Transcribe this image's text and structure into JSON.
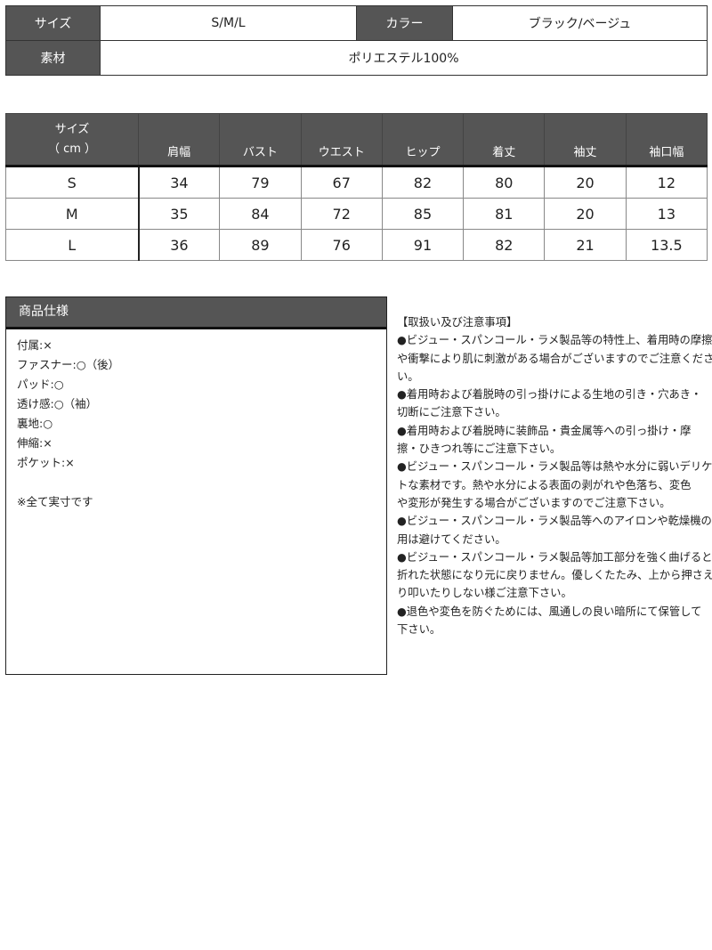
{
  "info": {
    "size_label": "サイズ",
    "size_value": "S/M/L",
    "color_label": "カラー",
    "color_value": "ブラック/ベージュ",
    "material_label": "素材",
    "material_value": "ポリエステル100%"
  },
  "size_table": {
    "header_line1": "サイズ",
    "header_line2": "（ cm ）",
    "columns": [
      "肩幅",
      "バスト",
      "ウエスト",
      "ヒップ",
      "着丈",
      "袖丈",
      "袖口幅"
    ],
    "rows": [
      {
        "size": "S",
        "values": [
          "34",
          "79",
          "67",
          "82",
          "80",
          "20",
          "12"
        ]
      },
      {
        "size": "M",
        "values": [
          "35",
          "84",
          "72",
          "85",
          "81",
          "20",
          "13"
        ]
      },
      {
        "size": "L",
        "values": [
          "36",
          "89",
          "76",
          "91",
          "82",
          "21",
          "13.5"
        ]
      }
    ]
  },
  "spec": {
    "title": "商品仕様",
    "items": [
      "付属:×",
      "ファスナー:○（後）",
      "パッド:○",
      "透け感:○（袖）",
      "裏地:○",
      "伸縮:×",
      "ポケット:×"
    ],
    "note": "※全て実寸です"
  },
  "notes": {
    "title": "【取扱い及び注意事項】",
    "lines": [
      "●ビジュー・スパンコール・ラメ製品等の特性上、着用時の摩擦",
      "や衝撃により肌に刺激がある場合がございますのでご注意くださ",
      "い。",
      "●着用時および着脱時の引っ掛けによる生地の引き・穴あき・",
      "切断にご注意下さい。",
      "●着用時および着脱時に装飾品・貴金属等への引っ掛け・摩",
      "擦・ひきつれ等にご注意下さい。",
      "●ビジュー・スパンコール・ラメ製品等は熱や水分に弱いデリケー",
      "トな素材です。熱や水分による表面の剥がれや色落ち、変色",
      "や変形が発生する場合がございますのでご注意下さい。",
      "●ビジュー・スパンコール・ラメ製品等へのアイロンや乾燥機の使",
      "用は避けてください。",
      "●ビジュー・スパンコール・ラメ製品等加工部分を強く曲げると",
      "折れた状態になり元に戻りません。優しくたたみ、上から押さえた",
      "り叩いたりしない様ご注意下さい。",
      "●退色や変色を防ぐためには、風通しの良い暗所にて保管して",
      "下さい。"
    ]
  }
}
